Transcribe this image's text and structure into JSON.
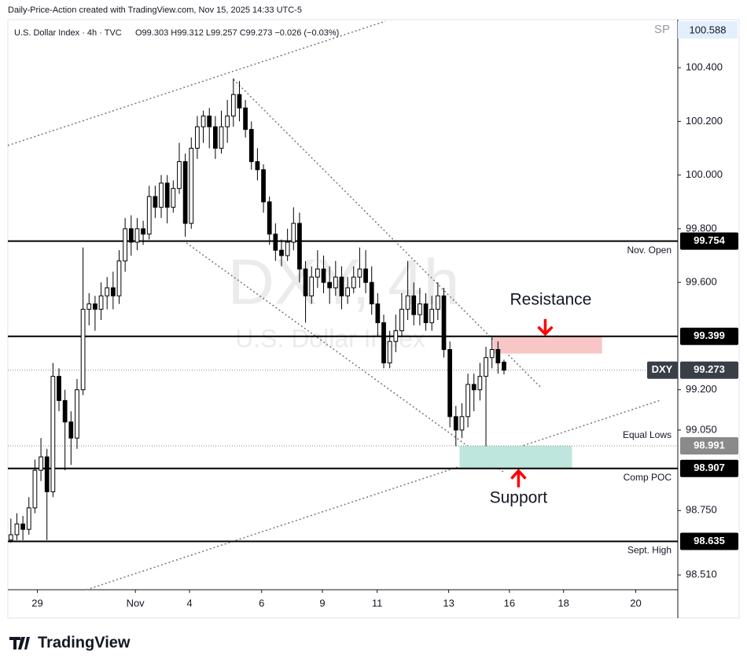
{
  "header": "Daily-Price-Action created with TradingView.com, Nov 15, 2025 14:33 UTC-5",
  "footer": "TradingView",
  "chart_data": {
    "type": "candlestick",
    "symbol_line": "U.S. Dollar Index · 4h · TVC",
    "ohlc_line": "O99.303 H99.312 L99.257 C99.273 −0.026 (−0.03%)",
    "watermark": "DXY, 4h",
    "watermark_subtitle": "U.S. Dollar Index",
    "corner_symbol": "SP",
    "corner_price": "100.588",
    "up_color": "#ffffff",
    "down_color": "#000000",
    "open": [
      98.64,
      98.66,
      98.7,
      98.68,
      98.76,
      98.9,
      98.95,
      98.82,
      99.25,
      99.16,
      99.08,
      99.02,
      99.2,
      99.5,
      99.52,
      99.5,
      99.55,
      99.58,
      99.55,
      99.68,
      99.8,
      99.75,
      99.8,
      99.78,
      99.92,
      99.88,
      99.97,
      99.88,
      99.95,
      100.05,
      99.82,
      100.1,
      100.18,
      100.22,
      100.18,
      100.1,
      100.18,
      100.22,
      100.3,
      100.25,
      100.17,
      100.05,
      100.02,
      99.9,
      99.78,
      99.72,
      99.7,
      99.75,
      99.82,
      99.65,
      99.55,
      99.62,
      99.65,
      99.6,
      99.58,
      99.62,
      99.55,
      99.58,
      99.62,
      99.65,
      99.6,
      99.52,
      99.45,
      99.3,
      99.38,
      99.42,
      99.5,
      99.55,
      99.48,
      99.52,
      99.45,
      99.5,
      99.55,
      99.35,
      99.1,
      99.05,
      99.1,
      99.22,
      99.2,
      99.25,
      99.32,
      99.35,
      99.303
    ],
    "high": [
      98.72,
      98.74,
      98.73,
      98.8,
      98.94,
      99.02,
      98.98,
      99.3,
      99.28,
      99.2,
      99.12,
      99.24,
      99.73,
      99.56,
      99.55,
      99.6,
      99.62,
      99.64,
      99.72,
      99.84,
      99.85,
      99.84,
      99.83,
      99.96,
      99.96,
      100.0,
      100.0,
      99.98,
      100.12,
      100.08,
      100.14,
      100.22,
      100.24,
      100.25,
      100.22,
      100.24,
      100.28,
      100.36,
      100.35,
      100.28,
      100.2,
      100.1,
      100.04,
      99.92,
      99.82,
      99.76,
      99.8,
      99.88,
      99.86,
      99.68,
      99.66,
      99.72,
      99.7,
      99.66,
      99.68,
      99.66,
      99.62,
      99.66,
      99.73,
      99.72,
      99.66,
      99.56,
      99.48,
      99.42,
      99.48,
      99.56,
      99.68,
      99.6,
      99.58,
      99.56,
      99.55,
      99.6,
      99.58,
      99.38,
      99.14,
      99.15,
      99.26,
      99.26,
      99.3,
      99.36,
      99.4,
      99.38,
      99.312
    ],
    "low": [
      98.63,
      98.64,
      98.64,
      98.66,
      98.74,
      98.86,
      98.64,
      98.8,
      99.12,
      98.9,
      98.92,
      98.98,
      99.18,
      99.44,
      99.42,
      99.46,
      99.5,
      99.5,
      99.52,
      99.64,
      99.7,
      99.72,
      99.74,
      99.76,
      99.84,
      99.84,
      99.82,
      99.86,
      99.93,
      99.77,
      99.8,
      100.06,
      100.12,
      100.1,
      100.06,
      100.08,
      100.12,
      100.18,
      100.2,
      100.14,
      100.02,
      99.98,
      99.86,
      99.74,
      99.68,
      99.66,
      99.68,
      99.72,
      99.6,
      99.45,
      99.52,
      99.58,
      99.56,
      99.52,
      99.55,
      99.5,
      99.52,
      99.56,
      99.58,
      99.56,
      99.48,
      99.4,
      99.28,
      99.28,
      99.34,
      99.4,
      99.46,
      99.44,
      99.44,
      99.42,
      99.42,
      99.46,
      99.32,
      99.06,
      98.99,
      99.02,
      99.06,
      99.12,
      99.16,
      98.99,
      99.28,
      99.26,
      99.257
    ],
    "close": [
      98.66,
      98.7,
      98.68,
      98.76,
      98.9,
      98.95,
      98.82,
      99.25,
      99.16,
      99.08,
      99.02,
      99.2,
      99.5,
      99.52,
      99.5,
      99.55,
      99.58,
      99.55,
      99.68,
      99.8,
      99.75,
      99.8,
      99.78,
      99.92,
      99.88,
      99.97,
      99.88,
      99.95,
      100.05,
      99.82,
      100.1,
      100.18,
      100.22,
      100.18,
      100.1,
      100.18,
      100.22,
      100.3,
      100.25,
      100.17,
      100.05,
      100.02,
      99.9,
      99.78,
      99.72,
      99.7,
      99.75,
      99.82,
      99.65,
      99.55,
      99.62,
      99.65,
      99.6,
      99.58,
      99.62,
      99.55,
      99.58,
      99.62,
      99.65,
      99.6,
      99.52,
      99.45,
      99.3,
      99.38,
      99.42,
      99.5,
      99.55,
      99.48,
      99.52,
      99.45,
      99.5,
      99.55,
      99.35,
      99.1,
      99.05,
      99.1,
      99.22,
      99.2,
      99.25,
      99.32,
      99.35,
      99.3,
      99.273
    ],
    "xlim": [
      -0.5,
      110.9
    ],
    "xticks": [
      {
        "value": 4.4,
        "label": "29"
      },
      {
        "value": 20.7,
        "label": "Nov"
      },
      {
        "value": 29.7,
        "label": "4"
      },
      {
        "value": 41.7,
        "label": "6"
      },
      {
        "value": 51.8,
        "label": "9"
      },
      {
        "value": 60.9,
        "label": "11"
      },
      {
        "value": 72.8,
        "label": "13"
      },
      {
        "value": 82.9,
        "label": "16"
      },
      {
        "value": 91.9,
        "label": "18"
      },
      {
        "value": 103.9,
        "label": "20"
      }
    ],
    "ylim": [
      98.455,
      100.579
    ],
    "yticks": [
      {
        "value": 100.4,
        "label": "100.400"
      },
      {
        "value": 100.2,
        "label": "100.200"
      },
      {
        "value": 100.0,
        "label": "100.000"
      },
      {
        "value": 99.8,
        "label": "99.800"
      },
      {
        "value": 99.6,
        "label": "99.600"
      },
      {
        "value": 99.2,
        "label": "99.200"
      },
      {
        "value": 99.05,
        "label": "99.050"
      },
      {
        "value": 98.75,
        "label": "98.750"
      },
      {
        "value": 98.51,
        "label": "98.510"
      }
    ],
    "levels": [
      {
        "value": 99.754,
        "label": "99.754",
        "note": "Nov. Open",
        "style": "solid",
        "color": "#000000"
      },
      {
        "value": 99.399,
        "label": "99.399",
        "style": "solid",
        "color": "#000000"
      },
      {
        "value": 99.273,
        "label": "99.273",
        "tag": "DXY",
        "style": "dotted",
        "color": "#3a3e47"
      },
      {
        "value": 98.991,
        "label": "98.991",
        "note": "Equal Lows",
        "style": "dotted",
        "color": "#8a8a8a"
      },
      {
        "value": 98.907,
        "label": "98.907",
        "note": "Comp POC",
        "style": "solid",
        "color": "#000000"
      },
      {
        "value": 98.635,
        "label": "98.635",
        "note": "Sept. High",
        "style": "solid",
        "color": "#000000"
      }
    ],
    "zones": [
      {
        "label": "Resistance",
        "from": 99.335,
        "to": 99.399,
        "x": [
          80.2,
          98.3
        ],
        "color": "#f8c6c6",
        "side": "above"
      },
      {
        "label": "Support",
        "from": 98.907,
        "to": 98.991,
        "x": [
          74.6,
          93.3
        ],
        "color": "#bfe6dc",
        "side": "below"
      }
    ]
  }
}
